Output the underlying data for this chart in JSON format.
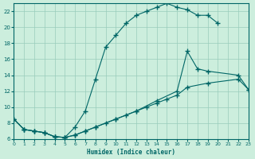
{
  "xlabel": "Humidex (Indice chaleur)",
  "bg_color": "#cceedd",
  "line_color": "#006666",
  "grid_color": "#99ccbb",
  "xlim": [
    0,
    23
  ],
  "ylim": [
    6,
    23
  ],
  "xticks": [
    0,
    1,
    2,
    3,
    4,
    5,
    6,
    7,
    8,
    9,
    10,
    11,
    12,
    13,
    14,
    15,
    16,
    17,
    18,
    19,
    20,
    21,
    22,
    23
  ],
  "yticks": [
    6,
    8,
    10,
    12,
    14,
    16,
    18,
    20,
    22
  ],
  "line1_x": [
    0,
    1,
    2,
    3,
    4,
    5,
    6,
    7,
    8,
    9,
    10,
    11,
    12,
    13,
    14,
    15,
    16,
    17,
    18,
    19,
    20
  ],
  "line1_y": [
    8.5,
    7.2,
    7.0,
    6.8,
    6.3,
    6.2,
    7.5,
    9.5,
    13.5,
    17.5,
    19.0,
    20.5,
    21.5,
    22.0,
    22.5,
    23.0,
    22.5,
    22.2,
    21.5,
    21.5,
    20.5
  ],
  "line2_x": [
    0,
    1,
    2,
    3,
    4,
    5,
    6,
    7,
    8,
    9,
    10,
    11,
    12,
    13,
    14,
    15,
    16,
    17,
    19,
    22,
    23
  ],
  "line2_y": [
    8.5,
    7.2,
    7.0,
    6.8,
    6.3,
    6.2,
    6.5,
    7.0,
    7.5,
    8.0,
    8.5,
    9.0,
    9.5,
    10.0,
    10.5,
    11.0,
    11.5,
    12.5,
    13.0,
    13.5,
    12.2
  ],
  "line3_x": [
    0,
    1,
    2,
    3,
    4,
    5,
    6,
    7,
    8,
    10,
    12,
    14,
    16,
    17,
    18,
    19,
    22,
    23
  ],
  "line3_y": [
    8.5,
    7.2,
    7.0,
    6.8,
    6.3,
    6.2,
    6.5,
    7.0,
    7.5,
    8.5,
    9.5,
    10.8,
    12.0,
    17.0,
    14.8,
    14.5,
    14.0,
    12.2
  ]
}
